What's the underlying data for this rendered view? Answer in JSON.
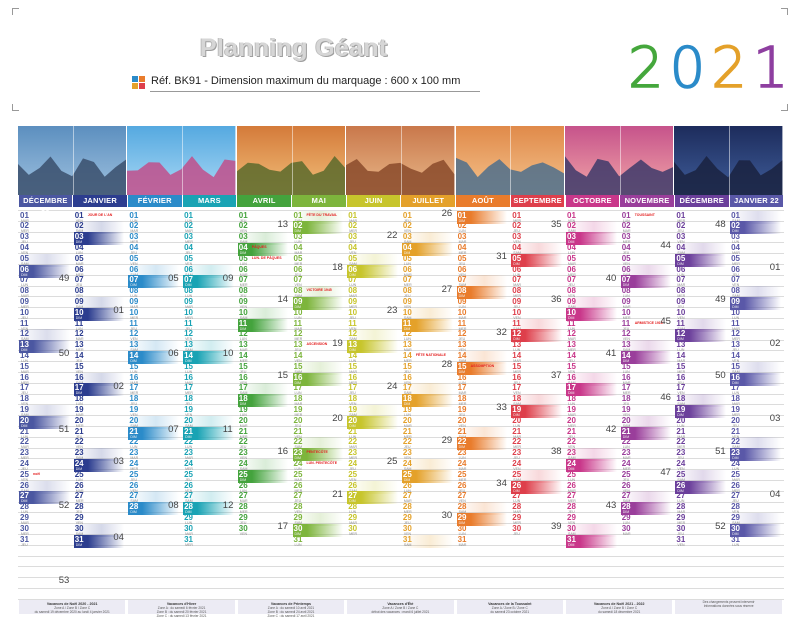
{
  "header": {
    "title": "Planning Géant",
    "subtitle": "Réf. BK91 - Dimension maximum du marquage : 600 x 100 mm",
    "year_digits": [
      "2",
      "0",
      "2",
      "1"
    ],
    "year_colors": [
      "#45a73c",
      "#2b8bc9",
      "#e4a12a",
      "#8e3fa0"
    ]
  },
  "day_names": [
    "LUN",
    "MAR",
    "MER",
    "JEU",
    "VEN",
    "SAM",
    "DIM"
  ],
  "months": [
    {
      "label": "DÉCEMBRE 20",
      "color": "#4b57a1",
      "start_dow": 1,
      "days": 31
    },
    {
      "label": "JANVIER",
      "color": "#2c3d8f",
      "start_dow": 4,
      "days": 31
    },
    {
      "label": "FÉVRIER",
      "color": "#2b8bc9",
      "start_dow": 0,
      "days": 28
    },
    {
      "label": "MARS",
      "color": "#19a3b4",
      "start_dow": 0,
      "days": 31
    },
    {
      "label": "AVRIL",
      "color": "#44a33d",
      "start_dow": 3,
      "days": 30
    },
    {
      "label": "MAI",
      "color": "#7db53c",
      "start_dow": 5,
      "days": 31
    },
    {
      "label": "JUIN",
      "color": "#c7c52c",
      "start_dow": 1,
      "days": 30
    },
    {
      "label": "JUILLET",
      "color": "#e4a12a",
      "start_dow": 3,
      "days": 31
    },
    {
      "label": "AOÛT",
      "color": "#e97c2c",
      "start_dow": 6,
      "days": 31
    },
    {
      "label": "SEPTEMBRE",
      "color": "#de3f4b",
      "start_dow": 2,
      "days": 30
    },
    {
      "label": "OCTOBRE",
      "color": "#c9378a",
      "start_dow": 4,
      "days": 31
    },
    {
      "label": "NOVEMBRE",
      "color": "#9a3e9b",
      "start_dow": 0,
      "days": 30
    },
    {
      "label": "DÉCEMBRE",
      "color": "#6b3f9b",
      "start_dow": 2,
      "days": 31
    },
    {
      "label": "JANVIER 22",
      "color": "#5a58a8",
      "start_dow": 5,
      "days": 31
    }
  ],
  "holidays": {
    "0": {
      "25": "noël"
    },
    "1": {
      "1": "JOUR DE L'AN"
    },
    "4": {
      "4": "PÂQUES",
      "5": "LUN. DE PÂQUES"
    },
    "5": {
      "1": "FÊTE DU TRAVAIL",
      "8": "VICTOIRE 1945",
      "13": "ASCENSION",
      "23": "PENTECÔTE",
      "24": "LUN. PENTECÔTE"
    },
    "7": {
      "14": "FÊTE NATIONALE"
    },
    "8": {
      "15": "ASSOMPTION"
    },
    "11": {
      "1": "TOUSSAINT",
      "11": "ARMISTICE 1918"
    }
  },
  "week_numbers": [
    {
      "col": 0,
      "row": 6,
      "n": "49"
    },
    {
      "col": 0,
      "row": 13,
      "n": "50"
    },
    {
      "col": 0,
      "row": 20,
      "n": "51"
    },
    {
      "col": 0,
      "row": 27,
      "n": "52"
    },
    {
      "col": 0,
      "row": 34,
      "n": "53"
    },
    {
      "col": 1,
      "row": 9,
      "n": "01"
    },
    {
      "col": 1,
      "row": 16,
      "n": "02"
    },
    {
      "col": 1,
      "row": 23,
      "n": "03"
    },
    {
      "col": 1,
      "row": 30,
      "n": "04"
    },
    {
      "col": 2,
      "row": 6,
      "n": "05"
    },
    {
      "col": 2,
      "row": 13,
      "n": "06"
    },
    {
      "col": 2,
      "row": 20,
      "n": "07"
    },
    {
      "col": 2,
      "row": 27,
      "n": "08"
    },
    {
      "col": 3,
      "row": 6,
      "n": "09"
    },
    {
      "col": 3,
      "row": 13,
      "n": "10"
    },
    {
      "col": 3,
      "row": 20,
      "n": "11"
    },
    {
      "col": 3,
      "row": 27,
      "n": "12"
    },
    {
      "col": 4,
      "row": 1,
      "n": "13"
    },
    {
      "col": 4,
      "row": 8,
      "n": "14"
    },
    {
      "col": 4,
      "row": 15,
      "n": "15"
    },
    {
      "col": 4,
      "row": 22,
      "n": "16"
    },
    {
      "col": 4,
      "row": 29,
      "n": "17"
    },
    {
      "col": 5,
      "row": 5,
      "n": "18"
    },
    {
      "col": 5,
      "row": 12,
      "n": "19"
    },
    {
      "col": 5,
      "row": 19,
      "n": "20"
    },
    {
      "col": 5,
      "row": 26,
      "n": "21"
    },
    {
      "col": 6,
      "row": 2,
      "n": "22"
    },
    {
      "col": 6,
      "row": 9,
      "n": "23"
    },
    {
      "col": 6,
      "row": 16,
      "n": "24"
    },
    {
      "col": 6,
      "row": 23,
      "n": "25"
    },
    {
      "col": 7,
      "row": 0,
      "n": "26"
    },
    {
      "col": 7,
      "row": 7,
      "n": "27"
    },
    {
      "col": 7,
      "row": 14,
      "n": "28"
    },
    {
      "col": 7,
      "row": 21,
      "n": "29"
    },
    {
      "col": 7,
      "row": 28,
      "n": "30"
    },
    {
      "col": 8,
      "row": 4,
      "n": "31"
    },
    {
      "col": 8,
      "row": 11,
      "n": "32"
    },
    {
      "col": 8,
      "row": 18,
      "n": "33"
    },
    {
      "col": 8,
      "row": 25,
      "n": "34"
    },
    {
      "col": 9,
      "row": 1,
      "n": "35"
    },
    {
      "col": 9,
      "row": 8,
      "n": "36"
    },
    {
      "col": 9,
      "row": 15,
      "n": "37"
    },
    {
      "col": 9,
      "row": 22,
      "n": "38"
    },
    {
      "col": 9,
      "row": 29,
      "n": "39"
    },
    {
      "col": 10,
      "row": 6,
      "n": "40"
    },
    {
      "col": 10,
      "row": 13,
      "n": "41"
    },
    {
      "col": 10,
      "row": 20,
      "n": "42"
    },
    {
      "col": 10,
      "row": 27,
      "n": "43"
    },
    {
      "col": 11,
      "row": 3,
      "n": "44"
    },
    {
      "col": 11,
      "row": 10,
      "n": "45"
    },
    {
      "col": 11,
      "row": 17,
      "n": "46"
    },
    {
      "col": 11,
      "row": 24,
      "n": "47"
    },
    {
      "col": 12,
      "row": 1,
      "n": "48"
    },
    {
      "col": 12,
      "row": 8,
      "n": "49"
    },
    {
      "col": 12,
      "row": 15,
      "n": "50"
    },
    {
      "col": 12,
      "row": 22,
      "n": "51"
    },
    {
      "col": 12,
      "row": 29,
      "n": "52"
    },
    {
      "col": 13,
      "row": 5,
      "n": "01"
    },
    {
      "col": 13,
      "row": 12,
      "n": "02"
    },
    {
      "col": 13,
      "row": 19,
      "n": "03"
    },
    {
      "col": 13,
      "row": 26,
      "n": "04"
    }
  ],
  "photos": [
    {
      "sky": [
        "#5c8fbf",
        "#9fc1df"
      ],
      "ground": "#3a4f6c"
    },
    {
      "sky": [
        "#55a9e0",
        "#a9d8f5"
      ],
      "ground": "#c14f8b"
    },
    {
      "sky": [
        "#d47a3a",
        "#f2c07a"
      ],
      "ground": "#5a6a2c"
    },
    {
      "sky": [
        "#c9784b",
        "#e9b98a"
      ],
      "ground": "#8a4a2a"
    },
    {
      "sky": [
        "#e08a4a",
        "#f4c38d"
      ],
      "ground": "#4d6f8c"
    },
    {
      "sky": [
        "#c6538b",
        "#f2a6a7"
      ],
      "ground": "#3d3a6a"
    },
    {
      "sky": [
        "#1d2c5c",
        "#3f5d9a"
      ],
      "ground": "#1a2240"
    }
  ],
  "footers": [
    {
      "title": "Vacances de Noël 2020 - 2021",
      "lines": [
        "Zone A / Zone B / Zone C",
        "du samedi 19 décembre 2020 au lundi 4 janvier 2021"
      ]
    },
    {
      "title": "Vacances d'Hiver",
      "lines": [
        "Zone A : du samedi 6 février 2021",
        "Zone B : du samedi 20 février 2021",
        "Zone C : du samedi 13 février 2021"
      ]
    },
    {
      "title": "Vacances de Printemps",
      "lines": [
        "Zone A : du samedi 10 avril 2021",
        "Zone B : du samedi 24 avril 2021",
        "Zone C : du samedi 17 avril 2021"
      ]
    },
    {
      "title": "Vacances d'Été",
      "lines": [
        "Zone A / Zone B / Zone C",
        "début des vacances : mardi 6 juillet 2021"
      ]
    },
    {
      "title": "Vacances de la Toussaint",
      "lines": [
        "Zone A / Zone B / Zone C",
        "du samedi 23 octobre 2021"
      ]
    },
    {
      "title": "Vacances de Noël 2021 - 2022",
      "lines": [
        "Zone A / Zone B / Zone C",
        "du samedi 18 décembre 2021"
      ]
    },
    {
      "title": "",
      "lines": [
        "Des changements peuvent intervenir",
        "Informations données sous réserve"
      ]
    }
  ]
}
